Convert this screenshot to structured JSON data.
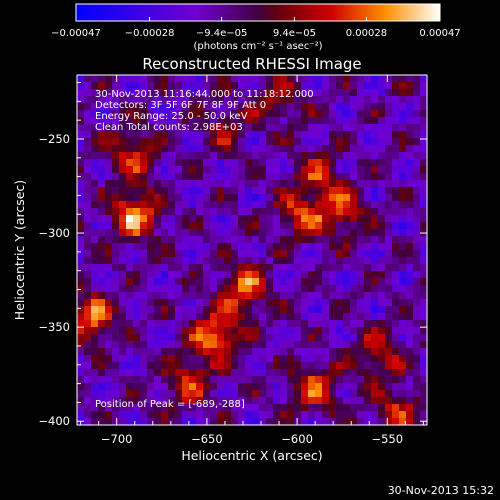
{
  "chart_data": {
    "type": "heatmap",
    "title": "Reconstructed RHESSI Image",
    "xlabel": "Heliocentric X (arcsec)",
    "ylabel": "Heliocentric Y (arcsec)",
    "xlim": [
      -722,
      -528
    ],
    "ylim": [
      -402,
      -216
    ],
    "x_ticks": [
      -700,
      -650,
      -600,
      -550
    ],
    "y_ticks": [
      -400,
      -350,
      -300,
      -250
    ],
    "x_tick_labels": [
      "−700",
      "−650",
      "−600",
      "−550"
    ],
    "y_tick_labels": [
      "−400",
      "−350",
      "−300",
      "−250"
    ],
    "colorbar": {
      "range": [
        -0.00047,
        0.00047
      ],
      "ticks": [
        -0.00047,
        -0.00028,
        -9.4e-05,
        9.4e-05,
        0.00028,
        0.00047
      ],
      "tick_labels": [
        "−0.00047",
        "−0.00028",
        "−9.4e−05",
        "9.4e−05",
        "0.00028",
        "0.00047"
      ],
      "units": "(photons cm⁻² s⁻¹ asec⁻²)"
    },
    "annotations": [
      "30-Nov-2013 11:16:44.000 to 11:18:12.000",
      "Detectors: 3F 5F 6F 7F 8F 9F Att 0",
      "Energy Range: 25.0 - 50.0 keV",
      "Clean    Total counts: 2.98E+03"
    ],
    "peak_label": "Position of Peak = [-689,-288]",
    "peak": [
      -689,
      -288
    ],
    "sources": [
      {
        "x": -690,
        "y": -290,
        "value": 0.00047
      },
      {
        "x": -714,
        "y": -345,
        "value": 0.0004
      },
      {
        "x": -692,
        "y": -258,
        "value": 0.0003
      },
      {
        "x": -645,
        "y": -355,
        "value": 0.00044
      },
      {
        "x": -630,
        "y": -330,
        "value": 0.00038
      },
      {
        "x": -660,
        "y": -380,
        "value": 0.0003
      },
      {
        "x": -598,
        "y": -290,
        "value": 0.00033
      },
      {
        "x": -575,
        "y": -290,
        "value": 0.0003
      },
      {
        "x": -588,
        "y": -270,
        "value": 0.00026
      },
      {
        "x": -590,
        "y": -382,
        "value": 0.00034
      },
      {
        "x": -555,
        "y": -365,
        "value": 0.0003
      },
      {
        "x": -545,
        "y": -395,
        "value": 0.00028
      },
      {
        "x": -640,
        "y": -245,
        "value": 0.0002
      },
      {
        "x": -610,
        "y": -230,
        "value": 0.00022
      }
    ]
  },
  "footer": {
    "timestamp": "30-Nov-2013 15:32"
  }
}
